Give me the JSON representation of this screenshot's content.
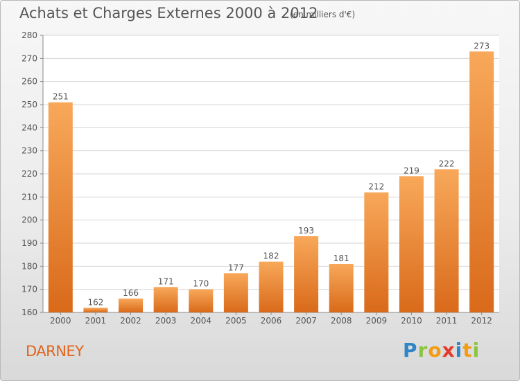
{
  "title": "Achats et Charges Externes 2000 à 2012",
  "unit": "(en milliers d'€)",
  "commune": "DARNEY",
  "logo": {
    "letters": [
      "P",
      "r",
      "o",
      "x",
      "i",
      "t",
      "i"
    ],
    "colors": [
      "#2e86c8",
      "#8bc53f",
      "#f39c12",
      "#e53b2c",
      "#2e86c8",
      "#f39c12",
      "#8bc53f"
    ]
  },
  "colors": {
    "bar": "#f0923a",
    "text": "#555555",
    "commune": "#e0641c"
  },
  "chart_data": {
    "type": "bar",
    "categories": [
      "2000",
      "2001",
      "2002",
      "2003",
      "2004",
      "2005",
      "2006",
      "2007",
      "2008",
      "2009",
      "2010",
      "2011",
      "2012"
    ],
    "values": [
      251,
      162,
      166,
      171,
      170,
      177,
      182,
      193,
      181,
      212,
      219,
      222,
      273
    ],
    "ylim": [
      160,
      280
    ],
    "yticks": [
      160,
      170,
      180,
      190,
      200,
      210,
      220,
      230,
      240,
      250,
      260,
      270,
      280
    ],
    "grid": true
  }
}
